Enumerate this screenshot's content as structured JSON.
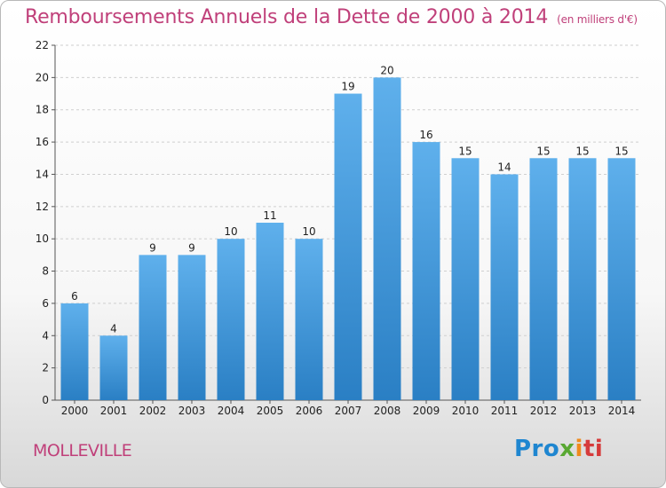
{
  "header": {
    "title": "Remboursements Annuels de la Dette de 2000 à 2014",
    "unit": "(en milliers d'€)"
  },
  "footer": {
    "commune": "MOLLEVILLE",
    "logo": {
      "p1": "Pro",
      "p2": "x",
      "p3": "i",
      "p4": "ti"
    }
  },
  "colors": {
    "title": "#c0407a",
    "bar_top": "#5fb0ec",
    "bar_bottom": "#2a7fc4",
    "grid": "#cfcfcf"
  },
  "chart_data": {
    "type": "bar",
    "title": "Remboursements Annuels de la Dette de 2000 à 2014",
    "xlabel": "",
    "ylabel": "",
    "categories": [
      "2000",
      "2001",
      "2002",
      "2003",
      "2004",
      "2005",
      "2006",
      "2007",
      "2008",
      "2009",
      "2010",
      "2011",
      "2012",
      "2013",
      "2014"
    ],
    "values": [
      6,
      4,
      9,
      9,
      10,
      11,
      10,
      19,
      20,
      16,
      15,
      14,
      15,
      15,
      15
    ],
    "ylim": [
      0,
      22
    ],
    "yticks": [
      0,
      2,
      4,
      6,
      8,
      10,
      12,
      14,
      16,
      18,
      20,
      22
    ],
    "grid": true,
    "grid_style": "dashed horizontal"
  }
}
